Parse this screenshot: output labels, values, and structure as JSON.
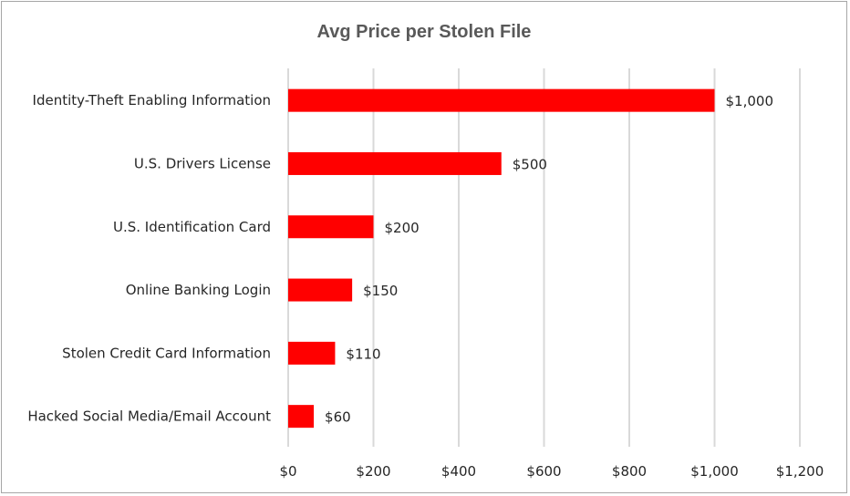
{
  "chart_data": {
    "type": "bar",
    "orientation": "horizontal",
    "title": "Avg Price per Stolen File",
    "categories": [
      "Identity-Theft Enabling Information",
      "U.S. Drivers License",
      "U.S. Identification Card",
      "Online Banking Login",
      "Stolen Credit Card Information",
      "Hacked Social Media/Email Account"
    ],
    "values": [
      1000,
      500,
      200,
      150,
      110,
      60
    ],
    "data_labels": [
      "$1,000",
      "$500",
      "$200",
      "$150",
      "$110",
      "$60"
    ],
    "xlim": [
      0,
      1200
    ],
    "x_ticks": [
      0,
      200,
      400,
      600,
      800,
      1000,
      1200
    ],
    "x_tick_labels": [
      "$0",
      "$200",
      "$400",
      "$600",
      "$800",
      "$1,000",
      "$1,200"
    ],
    "grid": "vertical",
    "legend": "none",
    "bar_color": "#ff0000",
    "gridline_color": "#d9d9d9",
    "title_color": "#595959"
  }
}
